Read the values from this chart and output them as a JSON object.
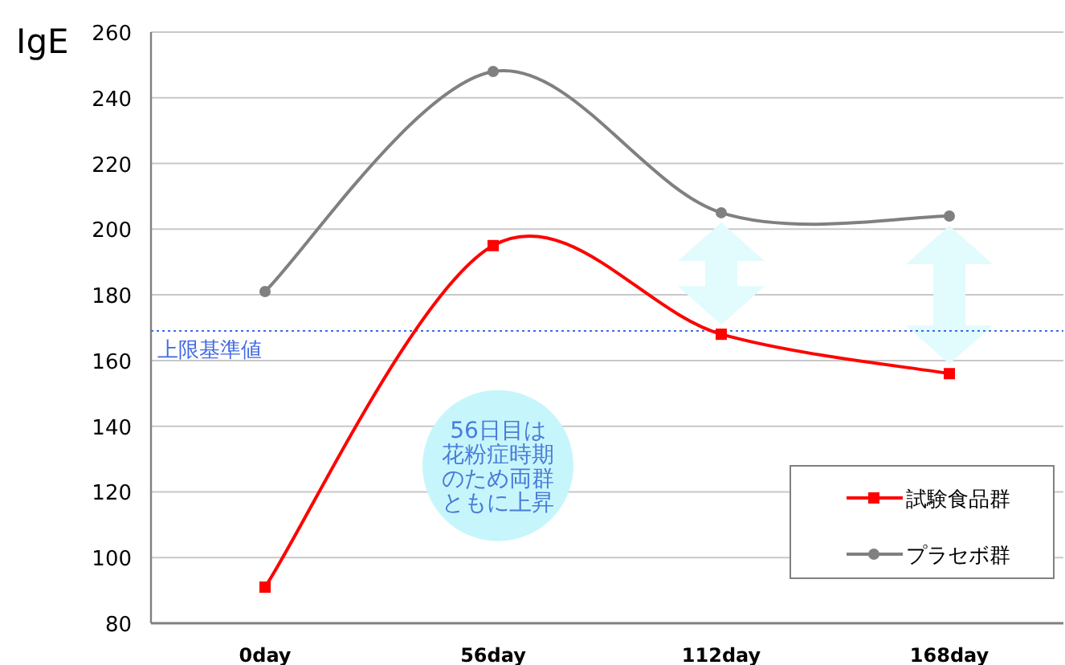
{
  "chart_data": {
    "type": "line",
    "ylabel": "IgE",
    "categories": [
      "0day",
      "56day",
      "112day",
      "168day"
    ],
    "series": [
      {
        "name": "試験食品群",
        "color": "#ff0000",
        "marker": "square",
        "values": [
          91,
          195,
          168,
          156
        ]
      },
      {
        "name": "プラセボ群",
        "color": "#808080",
        "marker": "circle",
        "values": [
          181,
          248,
          205,
          204
        ]
      }
    ],
    "ylim": [
      80,
      260
    ],
    "yticks": [
      80,
      100,
      120,
      140,
      160,
      180,
      200,
      220,
      240,
      260
    ],
    "grid": "y",
    "legend": "bottom right",
    "ref_lines": [
      {
        "axis": "y",
        "value": 169,
        "label": "上限基準値",
        "color": "#4169e1",
        "line_style": "dotted"
      }
    ],
    "annotations": [
      "56日目は花粉症時期のため両群ともに上昇"
    ]
  }
}
